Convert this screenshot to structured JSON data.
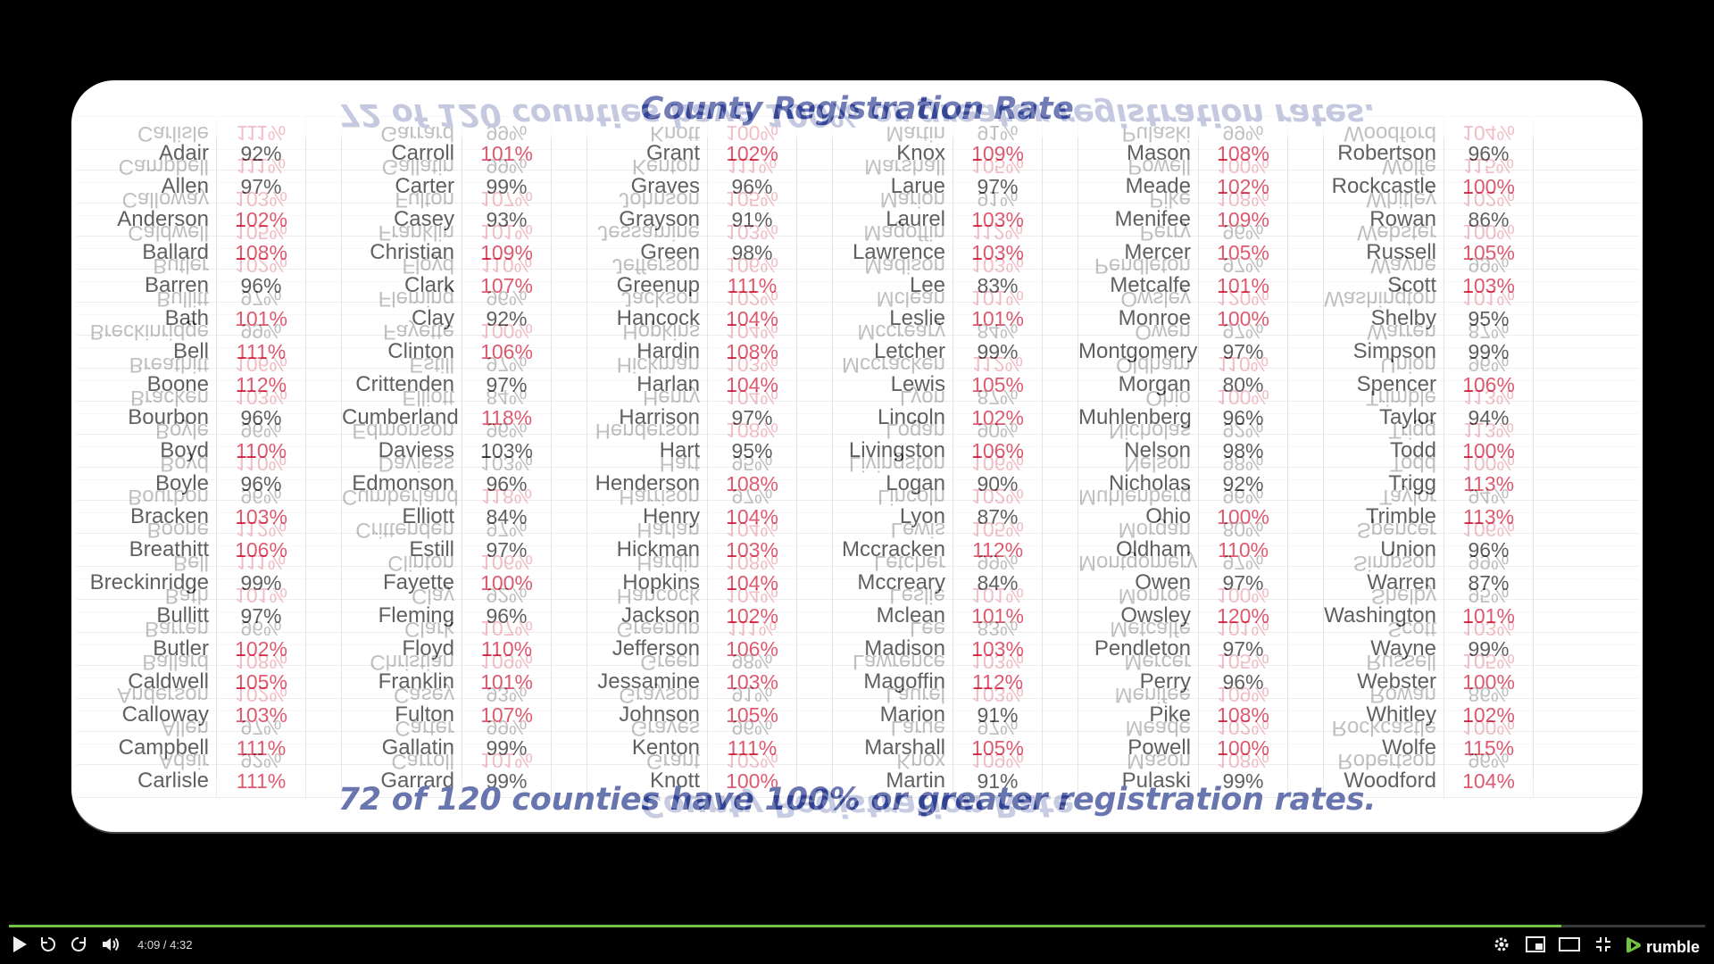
{
  "slide": {
    "title": "County Registration Rate",
    "footer": "72 of 120 counties have 100% or greater registration rates.",
    "columns": [
      [
        [
          "Adair",
          "92%"
        ],
        [
          "Allen",
          "97%"
        ],
        [
          "Anderson",
          "102%"
        ],
        [
          "Ballard",
          "108%"
        ],
        [
          "Barren",
          "96%"
        ],
        [
          "Bath",
          "101%"
        ],
        [
          "Bell",
          "111%"
        ],
        [
          "Boone",
          "112%"
        ],
        [
          "Bourbon",
          "96%"
        ],
        [
          "Boyd",
          "110%"
        ],
        [
          "Boyle",
          "96%"
        ],
        [
          "Bracken",
          "103%"
        ],
        [
          "Breathitt",
          "106%"
        ],
        [
          "Breckinridge",
          "99%"
        ],
        [
          "Bullitt",
          "97%"
        ],
        [
          "Butler",
          "102%"
        ],
        [
          "Caldwell",
          "105%"
        ],
        [
          "Calloway",
          "103%"
        ],
        [
          "Campbell",
          "111%"
        ],
        [
          "Carlisle",
          "111%"
        ]
      ],
      [
        [
          "Carroll",
          "101%"
        ],
        [
          "Carter",
          "99%"
        ],
        [
          "Casey",
          "93%"
        ],
        [
          "Christian",
          "109%"
        ],
        [
          "Clark",
          "107%"
        ],
        [
          "Clay",
          "92%"
        ],
        [
          "Clinton",
          "106%"
        ],
        [
          "Crittenden",
          "97%"
        ],
        [
          "Cumberland",
          "118%"
        ],
        [
          "Daviess",
          "103%"
        ],
        [
          "Edmonson",
          "96%"
        ],
        [
          "Elliott",
          "84%"
        ],
        [
          "Estill",
          "97%"
        ],
        [
          "Fayette",
          "100%"
        ],
        [
          "Fleming",
          "96%"
        ],
        [
          "Floyd",
          "110%"
        ],
        [
          "Franklin",
          "101%"
        ],
        [
          "Fulton",
          "107%"
        ],
        [
          "Gallatin",
          "99%"
        ],
        [
          "Garrard",
          "99%"
        ]
      ],
      [
        [
          "Grant",
          "102%"
        ],
        [
          "Graves",
          "96%"
        ],
        [
          "Grayson",
          "91%"
        ],
        [
          "Green",
          "98%"
        ],
        [
          "Greenup",
          "111%"
        ],
        [
          "Hancock",
          "104%"
        ],
        [
          "Hardin",
          "108%"
        ],
        [
          "Harlan",
          "104%"
        ],
        [
          "Harrison",
          "97%"
        ],
        [
          "Hart",
          "95%"
        ],
        [
          "Henderson",
          "108%"
        ],
        [
          "Henry",
          "104%"
        ],
        [
          "Hickman",
          "103%"
        ],
        [
          "Hopkins",
          "104%"
        ],
        [
          "Jackson",
          "102%"
        ],
        [
          "Jefferson",
          "106%"
        ],
        [
          "Jessamine",
          "103%"
        ],
        [
          "Johnson",
          "105%"
        ],
        [
          "Kenton",
          "111%"
        ],
        [
          "Knott",
          "100%"
        ]
      ],
      [
        [
          "Knox",
          "109%"
        ],
        [
          "Larue",
          "97%"
        ],
        [
          "Laurel",
          "103%"
        ],
        [
          "Lawrence",
          "103%"
        ],
        [
          "Lee",
          "83%"
        ],
        [
          "Leslie",
          "101%"
        ],
        [
          "Letcher",
          "99%"
        ],
        [
          "Lewis",
          "105%"
        ],
        [
          "Lincoln",
          "102%"
        ],
        [
          "Livingston",
          "106%"
        ],
        [
          "Logan",
          "90%"
        ],
        [
          "Lyon",
          "87%"
        ],
        [
          "Mccracken",
          "112%"
        ],
        [
          "Mccreary",
          "84%"
        ],
        [
          "Mclean",
          "101%"
        ],
        [
          "Madison",
          "103%"
        ],
        [
          "Magoffin",
          "112%"
        ],
        [
          "Marion",
          "91%"
        ],
        [
          "Marshall",
          "105%"
        ],
        [
          "Martin",
          "91%"
        ]
      ],
      [
        [
          "Mason",
          "108%"
        ],
        [
          "Meade",
          "102%"
        ],
        [
          "Menifee",
          "109%"
        ],
        [
          "Mercer",
          "105%"
        ],
        [
          "Metcalfe",
          "101%"
        ],
        [
          "Monroe",
          "100%"
        ],
        [
          "Montgomery",
          "97%"
        ],
        [
          "Morgan",
          "80%"
        ],
        [
          "Muhlenberg",
          "96%"
        ],
        [
          "Nelson",
          "98%"
        ],
        [
          "Nicholas",
          "92%"
        ],
        [
          "Ohio",
          "100%"
        ],
        [
          "Oldham",
          "110%"
        ],
        [
          "Owen",
          "97%"
        ],
        [
          "Owsley",
          "120%"
        ],
        [
          "Pendleton",
          "97%"
        ],
        [
          "Perry",
          "96%"
        ],
        [
          "Pike",
          "108%"
        ],
        [
          "Powell",
          "100%"
        ],
        [
          "Pulaski",
          "99%"
        ]
      ],
      [
        [
          "Robertson",
          "96%"
        ],
        [
          "Rockcastle",
          "100%"
        ],
        [
          "Rowan",
          "86%"
        ],
        [
          "Russell",
          "105%"
        ],
        [
          "Scott",
          "103%"
        ],
        [
          "Shelby",
          "95%"
        ],
        [
          "Simpson",
          "99%"
        ],
        [
          "Spencer",
          "106%"
        ],
        [
          "Taylor",
          "94%"
        ],
        [
          "Todd",
          "100%"
        ],
        [
          "Trigg",
          "113%"
        ],
        [
          "Trimble",
          "113%"
        ],
        [
          "Union",
          "96%"
        ],
        [
          "Warren",
          "87%"
        ],
        [
          "Washington",
          "101%"
        ],
        [
          "Wayne",
          "99%"
        ],
        [
          "Webster",
          "100%"
        ],
        [
          "Whitley",
          "102%"
        ],
        [
          "Wolfe",
          "115%"
        ],
        [
          "Woodford",
          "104%"
        ]
      ]
    ]
  },
  "colors": {
    "highlight": "#d01a38",
    "normal": "#222222",
    "title": "#3a4a9a",
    "progress": "#74c043"
  },
  "player": {
    "time": "4:09 / 4:32",
    "progress": 0.915,
    "brand": "rumble",
    "icons": [
      "play-icon",
      "replay-icon",
      "forward-icon",
      "volume-icon",
      "settings-icon",
      "pip-icon",
      "theater-icon",
      "fullscreen-icon"
    ]
  }
}
